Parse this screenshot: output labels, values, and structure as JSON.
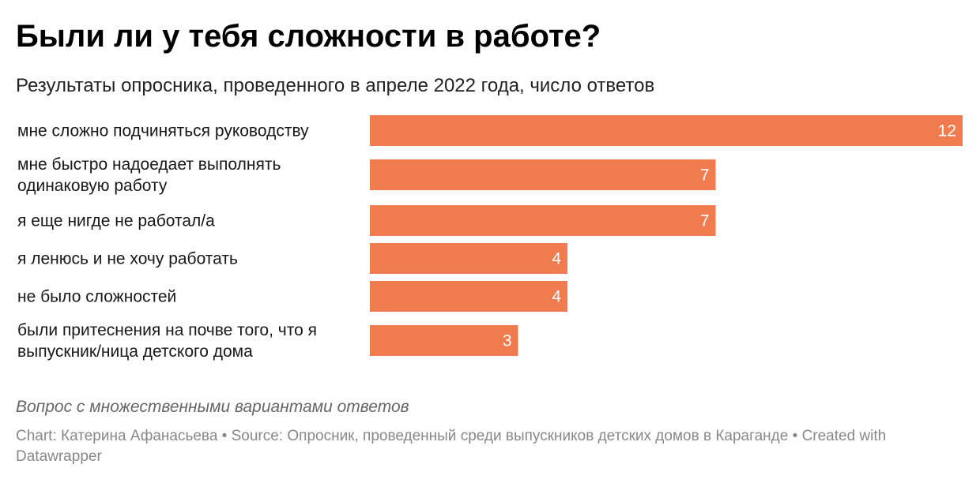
{
  "title": "Были ли у тебя сложности в работе?",
  "subtitle": "Результаты опросника, проведенного в апреле 2022 года, число ответов",
  "notes": "Вопрос с множественными вариантами ответов",
  "footer": {
    "chart_label": "Chart:",
    "author": "Катерина Афанасьева",
    "sep": "•",
    "source_label": "Source:",
    "source": "Опросник, проведенный среди выпускников детских домов в Караганде",
    "created": "Created with Datawrapper"
  },
  "colors": {
    "bar": "#f07b4e",
    "bar_label": "#ffffff"
  },
  "chart_data": {
    "type": "bar",
    "orientation": "horizontal",
    "categories": [
      "мне сложно подчиняться руководству",
      "мне быстро надоедает выполнять одинаковую работу",
      "я еще нигде не работал/а",
      "я ленюсь и не хочу работать",
      "не было сложностей",
      "были притеснения на почве того, что я выпускник/ница детского дома"
    ],
    "category_lines": [
      [
        "мне сложно подчиняться руководству"
      ],
      [
        "мне быстро надоедает выполнять",
        "одинаковую работу"
      ],
      [
        "я еще нигде не работал/а"
      ],
      [
        "я ленюсь и не хочу работать"
      ],
      [
        "не было сложностей"
      ],
      [
        "были притеснения на почве того, что я",
        "выпускник/ница детского дома"
      ]
    ],
    "values": [
      12,
      7,
      7,
      4,
      4,
      3
    ],
    "xlim": [
      0,
      12
    ],
    "grid": false,
    "data_labels": true
  }
}
